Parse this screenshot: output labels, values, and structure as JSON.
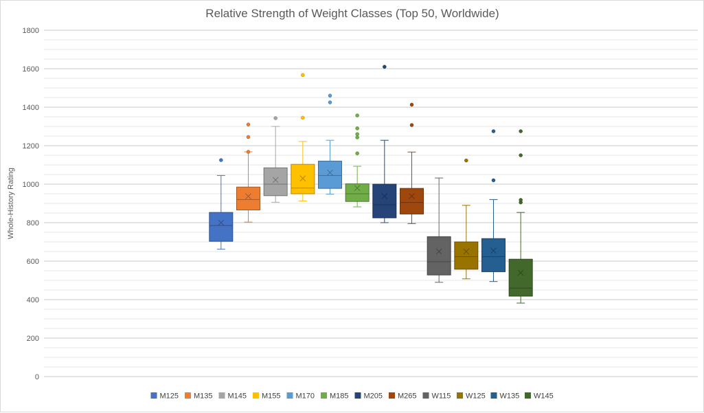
{
  "chart_data": {
    "type": "box",
    "title": "Relative Strength of Weight Classes (Top 50, Worldwide)",
    "xlabel": "",
    "ylabel": "Whole-History Rating",
    "ylim": [
      0,
      1800
    ],
    "y_major_step": 200,
    "y_minor_step": 50,
    "y_ticks": [
      "0",
      "200",
      "400",
      "600",
      "800",
      "1000",
      "1200",
      "1400",
      "1600",
      "1800"
    ],
    "grid": true,
    "legend": "bottom",
    "series": [
      {
        "name": "M125",
        "color": "#4472C4",
        "min": 662,
        "q1": 703,
        "median": 785,
        "q3": 853,
        "max": 1045,
        "mean": 800,
        "outliers": [
          1125
        ]
      },
      {
        "name": "M135",
        "color": "#ED7D31",
        "min": 803,
        "q1": 866,
        "median": 920,
        "q3": 985,
        "max": 1168,
        "mean": 937,
        "outliers": [
          1168,
          1245,
          1310
        ]
      },
      {
        "name": "M145",
        "color": "#A5A5A5",
        "min": 906,
        "q1": 940,
        "median": 1000,
        "q3": 1085,
        "max": 1300,
        "mean": 1022,
        "outliers": [
          1343
        ]
      },
      {
        "name": "M155",
        "color": "#FFC000",
        "min": 913,
        "q1": 950,
        "median": 980,
        "q3": 1103,
        "max": 1222,
        "mean": 1030,
        "outliers": [
          1345,
          1567
        ]
      },
      {
        "name": "M170",
        "color": "#5B9BD5",
        "min": 948,
        "q1": 978,
        "median": 1045,
        "q3": 1120,
        "max": 1228,
        "mean": 1060,
        "outliers": [
          1425,
          1460
        ]
      },
      {
        "name": "M185",
        "color": "#70AD47",
        "min": 882,
        "q1": 910,
        "median": 950,
        "q3": 1002,
        "max": 1093,
        "mean": 980,
        "outliers": [
          1160,
          1243,
          1260,
          1290,
          1357
        ]
      },
      {
        "name": "M205",
        "color": "#264478",
        "min": 800,
        "q1": 825,
        "median": 893,
        "q3": 1000,
        "max": 1228,
        "mean": 938,
        "outliers": [
          1610
        ]
      },
      {
        "name": "M265",
        "color": "#9E480E",
        "min": 795,
        "q1": 845,
        "median": 905,
        "q3": 978,
        "max": 1167,
        "mean": 938,
        "outliers": [
          1307,
          1413
        ]
      },
      {
        "name": "W115",
        "color": "#636363",
        "min": 490,
        "q1": 528,
        "median": 597,
        "q3": 727,
        "max": 1032,
        "mean": 650,
        "outliers": []
      },
      {
        "name": "W125",
        "color": "#997300",
        "min": 508,
        "q1": 558,
        "median": 623,
        "q3": 700,
        "max": 890,
        "mean": 650,
        "outliers": [
          1123
        ]
      },
      {
        "name": "W135",
        "color": "#255E91",
        "min": 494,
        "q1": 545,
        "median": 623,
        "q3": 717,
        "max": 920,
        "mean": 655,
        "outliers": [
          1020,
          1275
        ]
      },
      {
        "name": "W145",
        "color": "#43682B",
        "min": 382,
        "q1": 418,
        "median": 460,
        "q3": 610,
        "max": 853,
        "mean": 540,
        "outliers": [
          905,
          918,
          1150,
          1275
        ]
      }
    ]
  }
}
